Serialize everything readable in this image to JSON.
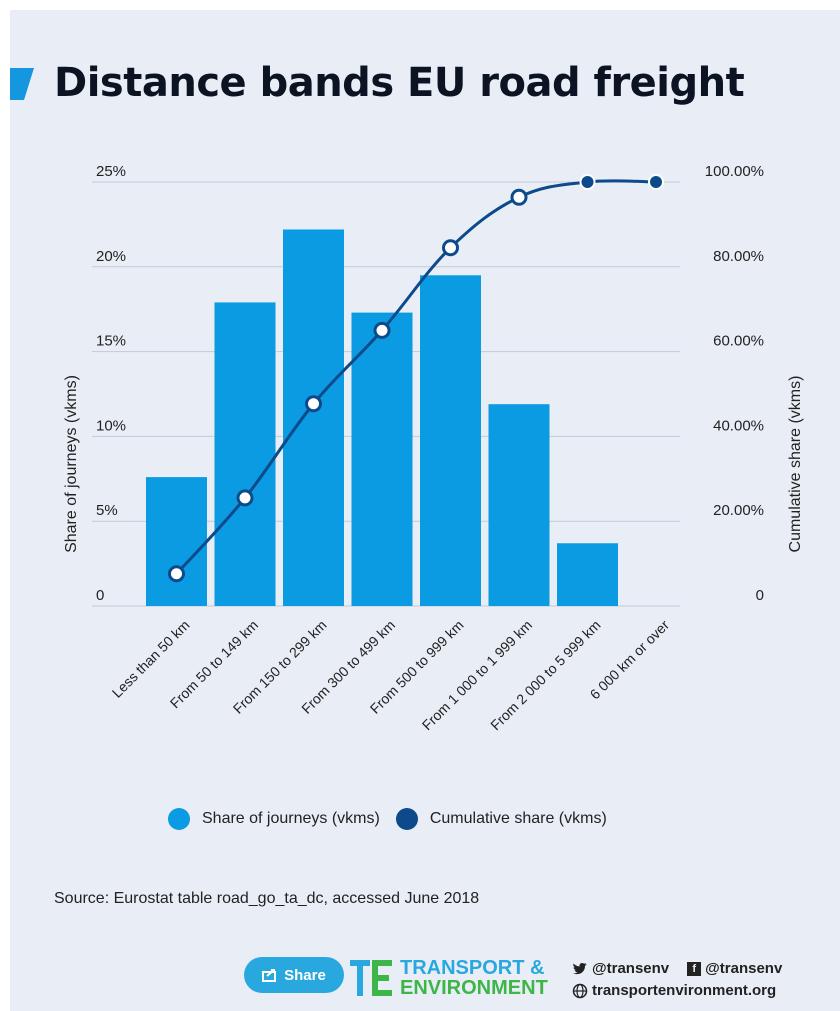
{
  "header": {
    "title": "Distance bands EU road freight"
  },
  "chart_data": {
    "type": "bar",
    "categories": [
      "Less than 50 km",
      "From 50 to 149 km",
      "From 150 to 299 km",
      "From 300 to 499 km",
      "From 500 to 999 km",
      "From 1 000 to 1 999 km",
      "From 2 000 to 5 999 km",
      "6 000 km or over"
    ],
    "series": [
      {
        "name": "Share of journeys (vkms)",
        "type": "bar",
        "axis": "left",
        "color": "#0b9be3",
        "values": [
          7.6,
          17.9,
          22.2,
          17.3,
          19.5,
          11.9,
          3.7,
          0
        ]
      },
      {
        "name": "Cumulative share (vkms)",
        "type": "line",
        "axis": "right",
        "color": "#0c4a8c",
        "values": [
          7.6,
          25.5,
          47.7,
          65.0,
          84.5,
          96.4,
          100.0,
          100.0
        ]
      }
    ],
    "ylabel": "Share of journeys (vkms)",
    "y2label": "Cumulative share (vkms)",
    "ylim": [
      0,
      25
    ],
    "y2lim": [
      0,
      100
    ],
    "yticks": [
      "0",
      "5%",
      "10%",
      "15%",
      "20%",
      "25%"
    ],
    "y2ticks": [
      "0",
      "20.00%",
      "40.00%",
      "60.00%",
      "80.00%",
      "100.00%"
    ],
    "grid": true,
    "legend_position": "bottom"
  },
  "legend": {
    "share_label": "Share of journeys (vkms)",
    "cumulative_label": "Cumulative share (vkms)"
  },
  "source": "Source: Eurostat table road_go_ta_dc, accessed June 2018",
  "footer": {
    "share_label": "Share",
    "brand_line1": "TRANSPORT &",
    "brand_line2": "ENVIRONMENT",
    "twitter": "@transenv",
    "facebook": "@transenv",
    "website": "transportenvironment.org"
  },
  "colors": {
    "bar": "#0b9be3",
    "line": "#0c4a8c",
    "background": "#e9eef6",
    "brand_blue": "#29a8e0",
    "brand_green": "#3db549"
  }
}
